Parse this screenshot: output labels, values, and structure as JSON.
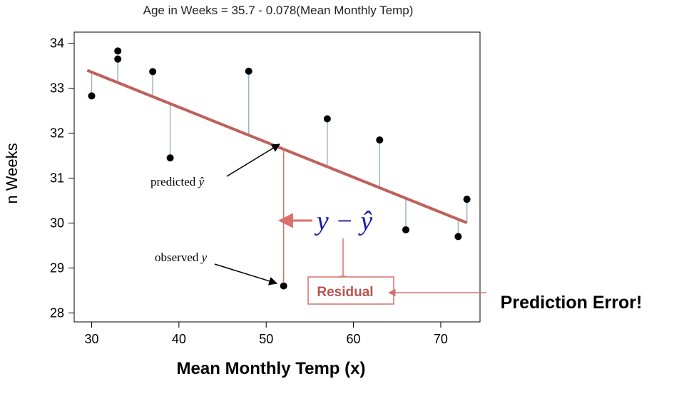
{
  "chart_data": {
    "type": "scatter",
    "title": "Age in Weeks = 35.7 - 0.078(Mean Monthly Temp)",
    "xlabel": "Mean Monthly Temp (x)",
    "ylabel": "n Weeks",
    "xlim": [
      28,
      74.5
    ],
    "ylim": [
      27.8,
      34.25
    ],
    "x_ticks": [
      30,
      40,
      50,
      60,
      70
    ],
    "y_ticks": [
      28,
      29,
      30,
      31,
      32,
      33,
      34
    ],
    "grid": false,
    "points": [
      {
        "x": 30,
        "y": 32.83
      },
      {
        "x": 33,
        "y": 33.83
      },
      {
        "x": 33,
        "y": 33.65
      },
      {
        "x": 37,
        "y": 33.37
      },
      {
        "x": 39,
        "y": 31.45
      },
      {
        "x": 48,
        "y": 33.38
      },
      {
        "x": 52,
        "y": 28.6
      },
      {
        "x": 57,
        "y": 32.32
      },
      {
        "x": 63,
        "y": 31.85
      },
      {
        "x": 66,
        "y": 29.85
      },
      {
        "x": 72,
        "y": 29.7
      },
      {
        "x": 73,
        "y": 30.53
      }
    ],
    "regression_line": {
      "intercept": 35.7,
      "slope": -0.078,
      "x_start": 29.5,
      "x_end": 73
    },
    "highlight_x": 52,
    "annotations": {
      "predicted_label": "predicted ",
      "predicted_symbol": "ŷ",
      "observed_label": "observed ",
      "observed_symbol": "y",
      "residual_formula": "y − ŷ",
      "residual_box": "Residual",
      "prediction_error": "Prediction Error!"
    },
    "colors": {
      "points": "#000000",
      "regression_line": "#c0605a",
      "residual_stems": "#9ab4cc",
      "residual_arrows": "#d9706a",
      "formula": "#1a1aaa",
      "residual_text": "#b85450"
    }
  }
}
